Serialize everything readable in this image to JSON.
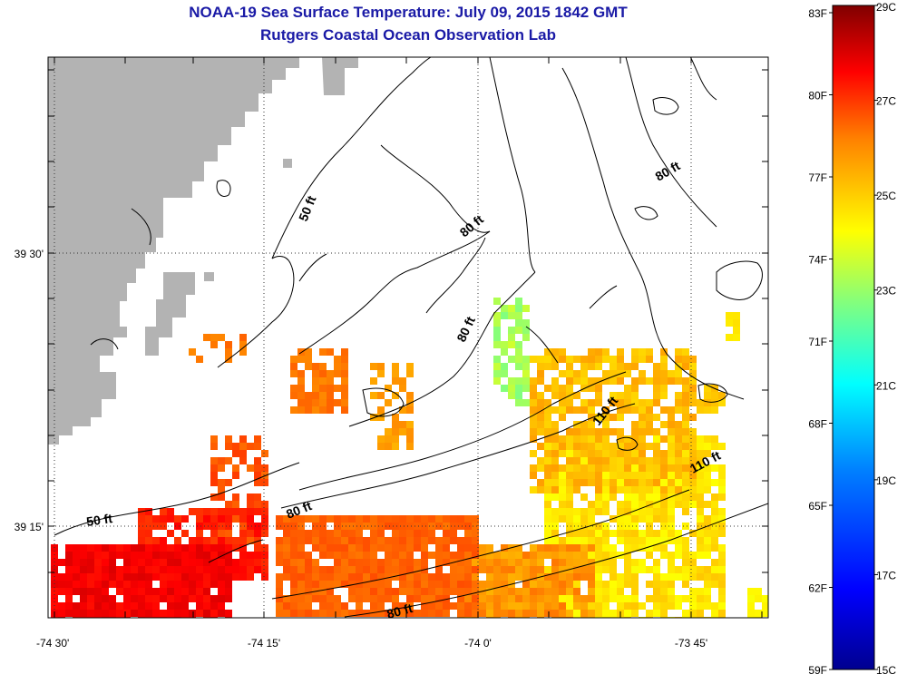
{
  "title": "NOAA-19 Sea Surface Temperature:  July 09, 2015 1842 GMT",
  "subtitle": "Rutgers Coastal Ocean Observation Lab",
  "colors": {
    "land": "#b3b3b3",
    "title_text": "#1a1aa6",
    "contour": "#000000",
    "ramp": [
      "#00008f",
      "#0000ff",
      "#0080ff",
      "#00ffff",
      "#80ff80",
      "#ffff00",
      "#ff8000",
      "#ff0000",
      "#800000"
    ]
  },
  "axes": {
    "longitude_labels": [
      "-74 30'",
      "-74 15'",
      "-74 0'",
      "-73 45'"
    ],
    "latitude_labels": [
      "39 30'",
      "39 15'"
    ]
  },
  "contour_labels": [
    "50 ft",
    "80 ft",
    "80 ft",
    "80 ft",
    "110 ft",
    "110 ft",
    "50 ft",
    "80 ft",
    "80 ft"
  ],
  "colorbar": {
    "fahrenheit": [
      "83F",
      "80F",
      "77F",
      "74F",
      "71F",
      "68F",
      "65F",
      "62F",
      "59F"
    ],
    "celsius": [
      "29C",
      "27C",
      "25C",
      "23C",
      "21C",
      "19C",
      "17C",
      "15C"
    ],
    "range_c": [
      15,
      29
    ]
  }
}
